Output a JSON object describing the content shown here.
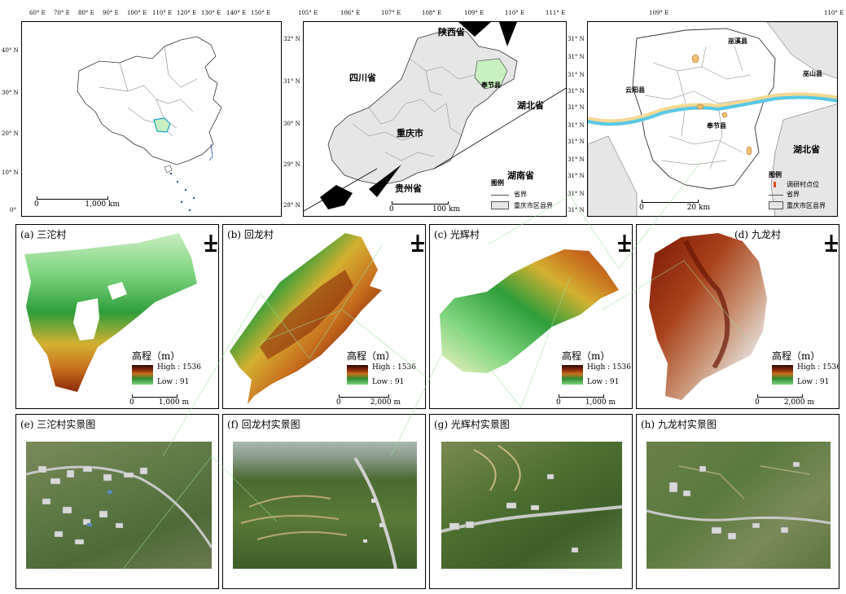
{
  "overview": {
    "china_map": {
      "lon_ticks": [
        "60° E",
        "70° E",
        "80° E",
        "90° E",
        "100° E",
        "110° E",
        "120° E",
        "130° E",
        "140° E",
        "150° E"
      ],
      "lat_ticks": [
        "40° N",
        "30° N",
        "20° N",
        "10° N",
        "0°"
      ],
      "scale_left": "0",
      "scale_right": "1,000 km"
    },
    "chongqing_map": {
      "lon_ticks": [
        "105° E",
        "106° E",
        "107° E",
        "108° E",
        "109° E",
        "110° E",
        "111° E"
      ],
      "lat_ticks": [
        "32° N",
        "31° N",
        "30° N",
        "29° N",
        "28° N"
      ],
      "labels": {
        "shaanxi": "陕西省",
        "sichuan": "四川省",
        "chongqing": "重庆市",
        "fengjie": "奉节县",
        "hubei": "湖北省",
        "hunan": "湖南省",
        "guizhou": "贵州省"
      },
      "legend": {
        "title": "图例",
        "line": "省界",
        "fill": "重庆市区县界"
      },
      "scale_left": "0",
      "scale_right": "100 km"
    },
    "fengjie_map": {
      "lon_ticks": [
        "109° E",
        "110° E"
      ],
      "lat_ticks": [
        "31° N",
        "31° N",
        "31° N",
        "31° N",
        "31° N",
        "31° N",
        "31° N",
        "31° N",
        "31° N",
        "31° N",
        "31° N"
      ],
      "labels": {
        "wuxi": "巫溪县",
        "wushan": "巫山县",
        "yunyang": "云阳县",
        "fengjie": "奉节县",
        "hubei": "湖北省"
      },
      "legend": {
        "title": "图例",
        "point": "调研村点位",
        "line": "省界",
        "fill": "重庆市区县界"
      },
      "scale_left": "0",
      "scale_right": "20 km"
    }
  },
  "dem_panels": [
    {
      "label": "(a) 三沱村",
      "legend_title": "高程（m）",
      "high": "High : 1536",
      "low": "Low : 91",
      "scale_left": "0",
      "scale_right": "1,000 m"
    },
    {
      "label": "(b) 回龙村",
      "legend_title": "高程（m）",
      "high": "High : 1536",
      "low": "Low : 91",
      "scale_left": "0",
      "scale_right": "2,000 m"
    },
    {
      "label": "(c) 光辉村",
      "legend_title": "高程（m）",
      "high": "High : 1536",
      "low": "Low : 91",
      "scale_left": "0",
      "scale_right": "1,000 m"
    },
    {
      "label": "(d) 九龙村",
      "legend_title": "高程（m）",
      "high": "High : 1536",
      "low": "Low : 91",
      "scale_left": "0",
      "scale_right": "2,000 m"
    }
  ],
  "photo_panels": [
    {
      "label": "(e) 三沱村实景图"
    },
    {
      "label": "(f) 回龙村实景图"
    },
    {
      "label": "(g) 光辉村实景图"
    },
    {
      "label": "(h) 九龙村实景图"
    }
  ],
  "colors": {
    "chongqing_fill": "#e6e6e6",
    "fengjie_highlight": "#c8f0c0",
    "river": "#56c8e8",
    "village_marker": "#f0c070",
    "elev_high": "#2d0a05",
    "elev_mid": "#c8701e",
    "elev_low": "#7fd67f"
  }
}
